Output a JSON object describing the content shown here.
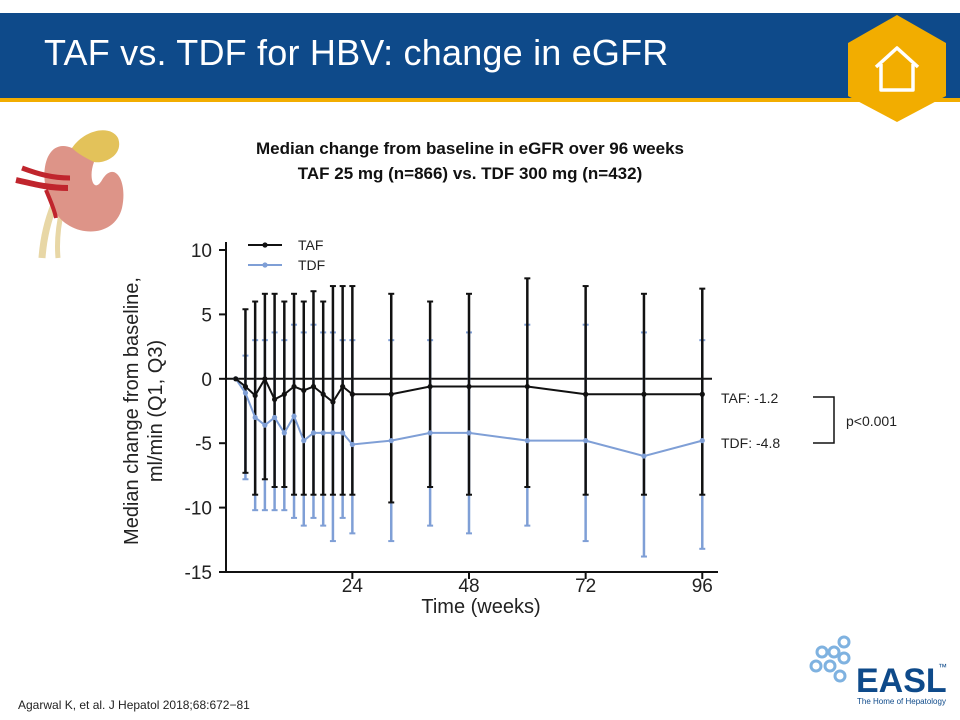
{
  "header": {
    "title": "TAF vs. TDF for HBV: change in eGFR",
    "colors": {
      "bar": "#0e4a8a",
      "stripe": "#f2ad00",
      "home_hex": "#f2ad00"
    },
    "home_icon": "house-icon"
  },
  "chart_title": {
    "line1": "Median change from baseline in eGFR over 96 weeks",
    "line2": "TAF 25 mg (n=866) vs. TDF 300 mg (n=432)"
  },
  "chart_data": {
    "type": "line",
    "xlabel": "Time (weeks)",
    "ylabel_line1": "Median change from baseline,",
    "ylabel_line2": "ml/min (Q1, Q3)",
    "xlim": [
      -2,
      98
    ],
    "ylim": [
      -15,
      10
    ],
    "x_ticks": [
      24,
      48,
      72,
      96
    ],
    "y_ticks": [
      10,
      5,
      0,
      -5,
      -10,
      -15
    ],
    "y_tick_labels": [
      "10",
      "5",
      "0",
      "-5",
      "-10",
      "-15"
    ],
    "reference_line": 0,
    "legend": "top-left",
    "series": [
      {
        "name": "TAF",
        "color": "#111111",
        "x": [
          0,
          2,
          4,
          6,
          8,
          10,
          12,
          14,
          16,
          18,
          20,
          22,
          24,
          32,
          40,
          48,
          60,
          72,
          84,
          96
        ],
        "y": [
          0,
          -0.6,
          -1.3,
          0,
          -1.6,
          -1.2,
          -0.6,
          -0.9,
          -0.6,
          -1.2,
          -1.8,
          -0.6,
          -1.2,
          -1.2,
          -0.6,
          -0.6,
          -0.6,
          -1.2,
          -1.2,
          -1.2
        ],
        "q1": [
          0,
          -7.3,
          -9.0,
          -7.8,
          -8.4,
          -8.4,
          -9.0,
          -9.0,
          -9.0,
          -9.0,
          -9.0,
          -9.0,
          -9.0,
          -9.6,
          -8.4,
          -9.0,
          -8.4,
          -9.0,
          -9.0,
          -9.0
        ],
        "q3": [
          0,
          5.4,
          6.0,
          6.6,
          6.6,
          6.0,
          6.6,
          6.0,
          6.8,
          6.0,
          7.2,
          7.2,
          7.2,
          6.6,
          6.0,
          6.6,
          7.8,
          7.2,
          6.6,
          7.0
        ]
      },
      {
        "name": "TDF",
        "color": "#7f9fd6",
        "x": [
          0,
          2,
          4,
          6,
          8,
          10,
          12,
          14,
          16,
          18,
          20,
          22,
          24,
          32,
          40,
          48,
          60,
          72,
          84,
          96
        ],
        "y": [
          0,
          -1.1,
          -3.0,
          -3.6,
          -3.0,
          -4.2,
          -2.9,
          -4.8,
          -4.2,
          -4.2,
          -4.2,
          -4.2,
          -5.1,
          -4.8,
          -4.2,
          -4.2,
          -4.8,
          -4.8,
          -6.0,
          -4.8
        ],
        "q1": [
          0,
          -7.8,
          -10.2,
          -10.2,
          -10.2,
          -10.2,
          -10.8,
          -11.4,
          -10.8,
          -11.4,
          -12.6,
          -10.8,
          -12.0,
          -12.6,
          -11.4,
          -12.0,
          -11.4,
          -12.6,
          -13.8,
          -13.2
        ],
        "q3": [
          0,
          1.8,
          3.0,
          3.0,
          3.6,
          3.0,
          4.2,
          3.6,
          4.2,
          3.6,
          3.6,
          3.0,
          3.0,
          3.0,
          3.0,
          3.6,
          4.2,
          4.2,
          3.6,
          3.0
        ]
      }
    ],
    "annotations": {
      "taf_label": "TAF: -1.2",
      "tdf_label": "TDF: -4.8",
      "p_value": "p<0.001"
    }
  },
  "footer": {
    "citation": "Agarwal K, et al. J Hepatol 2018;68:672−81",
    "logo_text": "EASL",
    "logo_tm": "™",
    "logo_tagline": "The Home of Hepatology",
    "logo_color": "#0e4a8a",
    "logo_accent": "#7fb2e0"
  },
  "decor": {
    "kidney_icon": "kidney-icon"
  }
}
